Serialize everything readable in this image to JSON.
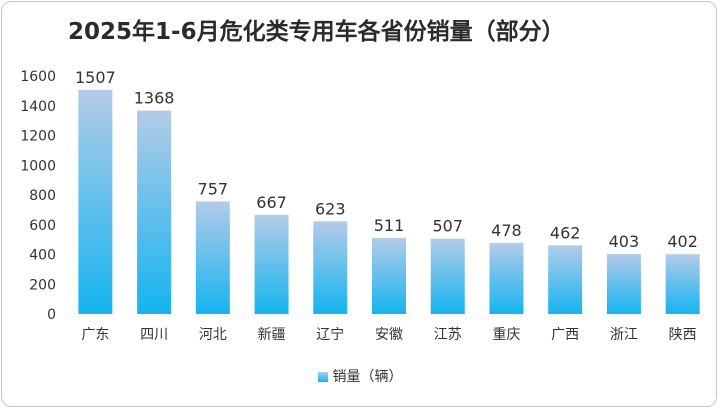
{
  "chart_data": {
    "type": "bar",
    "title": "2025年1-6月危化类专用车各省份销量（部分）",
    "categories": [
      "广东",
      "四川",
      "河北",
      "新疆",
      "辽宁",
      "安徽",
      "江苏",
      "重庆",
      "广西",
      "浙江",
      "陕西"
    ],
    "series": [
      {
        "name": "销量（辆）",
        "values": [
          1507,
          1368,
          757,
          667,
          623,
          511,
          507,
          478,
          462,
          403,
          402
        ]
      }
    ],
    "ylim": [
      0,
      1600
    ],
    "yticks": [
      0,
      200,
      400,
      600,
      800,
      1000,
      1200,
      1400,
      1600
    ],
    "grid": false,
    "legend": "bottom",
    "bar_gradient": [
      "#b3cbe8",
      "#14b4f0"
    ]
  }
}
